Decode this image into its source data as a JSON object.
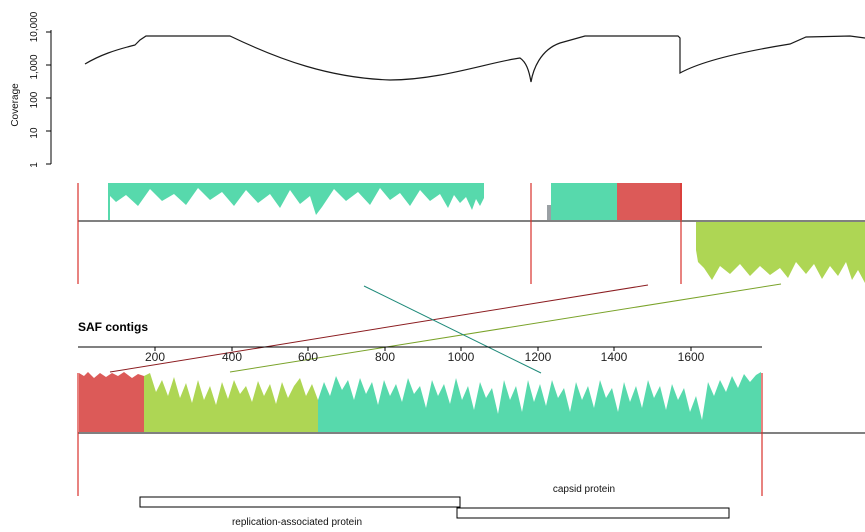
{
  "coverage_panel": {
    "ylabel": "Coverage",
    "scale": "log",
    "yticks": [
      "1",
      "10",
      "100",
      "1,000",
      "10,000"
    ],
    "ytick_values": [
      1,
      10,
      100,
      1000,
      10000
    ]
  },
  "contigs_panel": {
    "title": "SAF contigs",
    "xticks": [
      "200",
      "400",
      "600",
      "800",
      "1000",
      "1200",
      "1400",
      "1600"
    ],
    "xtick_values": [
      200,
      400,
      600,
      800,
      1000,
      1200,
      1400,
      1600
    ]
  },
  "genes": [
    {
      "name": "replication-associated protein"
    },
    {
      "name": "capsid protein"
    }
  ],
  "colors": {
    "teal": "#57d9ac",
    "red": "#dc5a58",
    "lime": "#aed654",
    "marker": "#d9302a",
    "axis": "#000000",
    "coverage_line": "#1a1a1a",
    "link_red": "#8b1c20",
    "link_green": "#7aa32a",
    "link_teal": "#1f8a7a"
  }
}
